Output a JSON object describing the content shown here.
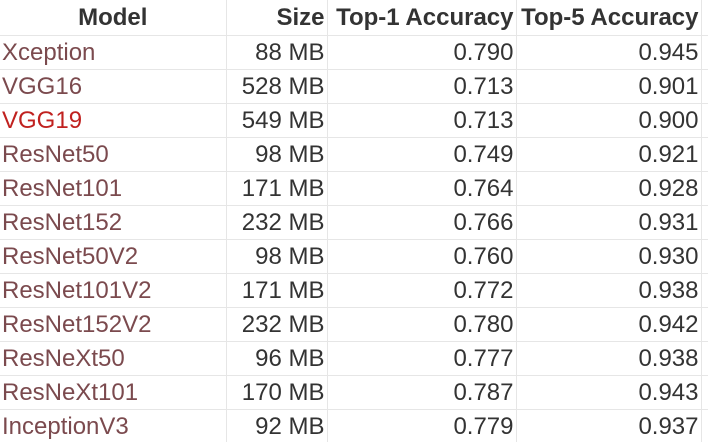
{
  "table": {
    "headers": [
      "Model",
      "Size",
      "Top-1 Accuracy",
      "Top-5 Accuracy"
    ],
    "rows": [
      {
        "model": "Xception",
        "size": "88 MB",
        "top1": "0.790",
        "top5": "0.945"
      },
      {
        "model": "VGG16",
        "size": "528 MB",
        "top1": "0.713",
        "top5": "0.901"
      },
      {
        "model": "VGG19",
        "size": "549 MB",
        "top1": "0.713",
        "top5": "0.900",
        "highlight": true
      },
      {
        "model": "ResNet50",
        "size": "98 MB",
        "top1": "0.749",
        "top5": "0.921"
      },
      {
        "model": "ResNet101",
        "size": "171 MB",
        "top1": "0.764",
        "top5": "0.928"
      },
      {
        "model": "ResNet152",
        "size": "232 MB",
        "top1": "0.766",
        "top5": "0.931"
      },
      {
        "model": "ResNet50V2",
        "size": "98 MB",
        "top1": "0.760",
        "top5": "0.930"
      },
      {
        "model": "ResNet101V2",
        "size": "171 MB",
        "top1": "0.772",
        "top5": "0.938"
      },
      {
        "model": "ResNet152V2",
        "size": "232 MB",
        "top1": "0.780",
        "top5": "0.942"
      },
      {
        "model": "ResNeXt50",
        "size": "96 MB",
        "top1": "0.777",
        "top5": "0.938"
      },
      {
        "model": "ResNeXt101",
        "size": "170 MB",
        "top1": "0.787",
        "top5": "0.943"
      },
      {
        "model": "InceptionV3",
        "size": "92 MB",
        "top1": "0.779",
        "top5": "0.937"
      }
    ]
  },
  "colors": {
    "model_link": "#7b4a4e",
    "model_link_highlight": "#c0211f",
    "text": "#333333",
    "grid": "#e6e6e6"
  }
}
